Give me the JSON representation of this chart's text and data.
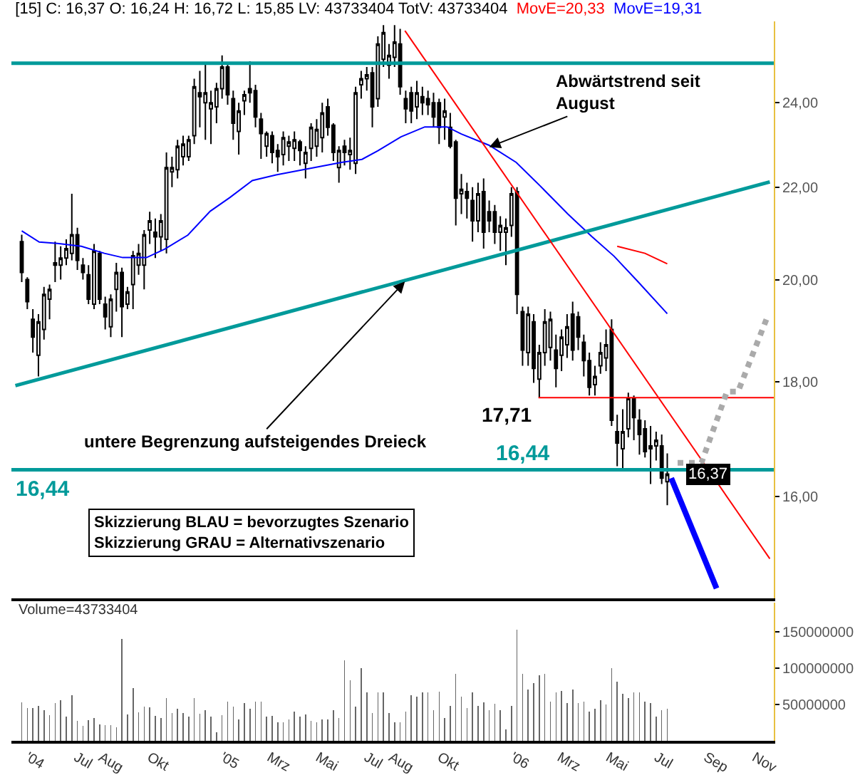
{
  "chart_data": [
    {
      "type": "candlestick",
      "title": "[15] C: 16,37 O: 16,24 H: 16,72 L: 15,85 LV: 43733404 TotV: 43733404",
      "log": true,
      "tick_labels": "y",
      "xlim": [
        "2004-04-10",
        "2006-11-25"
      ],
      "ylim": [
        14.4,
        26.1
      ],
      "yticks": [
        {
          "value": 16,
          "label": "16,00"
        },
        {
          "value": 18,
          "label": "18,00"
        },
        {
          "value": 20,
          "label": "20,00"
        },
        {
          "value": 22,
          "label": "22,00"
        },
        {
          "value": 24,
          "label": "24,00"
        }
      ],
      "x": [
        "2004-04-23",
        "2004-04-30",
        "2004-05-07",
        "2004-05-14",
        "2004-05-21",
        "2004-05-28",
        "2004-06-04",
        "2004-06-11",
        "2004-06-18",
        "2004-06-25",
        "2004-07-02",
        "2004-07-09",
        "2004-07-16",
        "2004-07-23",
        "2004-07-30",
        "2004-08-06",
        "2004-08-13",
        "2004-08-20",
        "2004-08-27",
        "2004-09-03",
        "2004-09-10",
        "2004-09-17",
        "2004-09-24",
        "2004-10-01",
        "2004-10-08",
        "2004-10-15",
        "2004-10-22",
        "2004-10-29",
        "2004-11-05",
        "2004-11-12",
        "2004-11-19",
        "2004-11-26",
        "2004-12-03",
        "2004-12-10",
        "2004-12-17",
        "2004-12-24",
        "2004-12-31",
        "2005-01-07",
        "2005-01-14",
        "2005-01-21",
        "2005-01-28",
        "2005-02-04",
        "2005-02-11",
        "2005-02-18",
        "2005-02-25",
        "2005-03-04",
        "2005-03-11",
        "2005-03-18",
        "2005-03-25",
        "2005-04-01",
        "2005-04-08",
        "2005-04-15",
        "2005-04-22",
        "2005-04-29",
        "2005-05-06",
        "2005-05-13",
        "2005-05-20",
        "2005-05-27",
        "2005-06-03",
        "2005-06-10",
        "2005-06-17",
        "2005-06-24",
        "2005-07-01",
        "2005-07-08",
        "2005-07-15",
        "2005-07-22",
        "2005-07-29",
        "2005-08-05",
        "2005-08-12",
        "2005-08-19",
        "2005-08-26",
        "2005-09-02",
        "2005-09-09",
        "2005-09-16",
        "2005-09-23",
        "2005-09-30",
        "2005-10-07",
        "2005-10-14",
        "2005-10-21",
        "2005-10-28",
        "2005-11-04",
        "2005-11-11",
        "2005-11-18",
        "2005-11-25",
        "2005-12-02",
        "2005-12-09",
        "2005-12-16",
        "2005-12-23",
        "2005-12-30",
        "2006-01-06",
        "2006-01-13",
        "2006-01-20",
        "2006-01-27",
        "2006-02-03",
        "2006-02-10",
        "2006-02-17",
        "2006-02-24",
        "2006-03-03",
        "2006-03-10",
        "2006-03-17",
        "2006-03-24",
        "2006-03-31",
        "2006-04-07",
        "2006-04-14",
        "2006-04-21",
        "2006-04-28",
        "2006-05-05",
        "2006-05-12",
        "2006-05-19",
        "2006-05-26",
        "2006-06-02",
        "2006-06-09",
        "2006-06-16",
        "2006-06-23",
        "2006-06-30",
        "2006-07-07",
        "2006-07-14"
      ],
      "ohlc": [
        [
          20.8,
          20.95,
          19.95,
          20.15
        ],
        [
          20.0,
          20.05,
          19.4,
          19.55
        ],
        [
          19.2,
          19.4,
          18.55,
          18.85
        ],
        [
          18.5,
          19.3,
          18.1,
          19.15
        ],
        [
          19.0,
          19.85,
          18.8,
          19.7
        ],
        [
          19.6,
          19.9,
          19.2,
          19.8
        ],
        [
          20.3,
          20.8,
          19.95,
          20.35
        ],
        [
          20.3,
          20.7,
          20.0,
          20.45
        ],
        [
          20.45,
          20.85,
          20.3,
          20.65
        ],
        [
          20.55,
          21.85,
          20.4,
          20.95
        ],
        [
          20.95,
          21.1,
          20.2,
          20.4
        ],
        [
          20.3,
          20.45,
          20.0,
          20.15
        ],
        [
          20.1,
          20.3,
          19.5,
          19.6
        ],
        [
          19.5,
          20.75,
          19.4,
          20.6
        ],
        [
          20.55,
          20.6,
          19.5,
          19.6
        ],
        [
          19.5,
          19.65,
          19.0,
          19.25
        ],
        [
          19.05,
          19.7,
          18.85,
          19.6
        ],
        [
          19.8,
          20.35,
          19.35,
          20.15
        ],
        [
          20.15,
          20.25,
          18.85,
          19.45
        ],
        [
          19.5,
          19.85,
          19.4,
          19.75
        ],
        [
          19.9,
          20.6,
          19.4,
          20.5
        ],
        [
          20.3,
          20.75,
          20.1,
          20.55
        ],
        [
          20.3,
          21.05,
          19.8,
          20.95
        ],
        [
          21.05,
          21.45,
          20.75,
          21.25
        ],
        [
          21.0,
          21.3,
          20.45,
          20.9
        ],
        [
          20.9,
          21.4,
          20.6,
          21.25
        ],
        [
          20.85,
          22.8,
          20.55,
          22.45
        ],
        [
          22.35,
          22.7,
          22.0,
          22.45
        ],
        [
          22.4,
          23.1,
          22.2,
          22.95
        ],
        [
          22.7,
          23.2,
          22.5,
          23.0
        ],
        [
          22.7,
          23.2,
          22.6,
          23.1
        ],
        [
          23.2,
          24.6,
          23.0,
          24.4
        ],
        [
          24.25,
          24.8,
          23.4,
          24.15
        ],
        [
          24.0,
          25.0,
          23.1,
          24.25
        ],
        [
          23.85,
          24.3,
          23.0,
          24.0
        ],
        [
          23.9,
          24.5,
          23.5,
          24.35
        ],
        [
          24.35,
          25.2,
          24.1,
          24.9
        ],
        [
          24.9,
          25.0,
          23.95,
          24.2
        ],
        [
          24.1,
          24.3,
          23.1,
          23.5
        ],
        [
          23.3,
          24.0,
          22.75,
          23.8
        ],
        [
          24.05,
          24.3,
          23.7,
          24.2
        ],
        [
          24.35,
          25.05,
          24.0,
          24.25
        ],
        [
          24.3,
          24.45,
          23.4,
          23.65
        ],
        [
          23.6,
          23.75,
          22.65,
          23.25
        ],
        [
          22.95,
          23.3,
          22.7,
          23.25
        ],
        [
          23.2,
          23.3,
          22.55,
          22.8
        ],
        [
          22.85,
          23.0,
          22.35,
          22.7
        ],
        [
          22.75,
          23.3,
          22.5,
          23.15
        ],
        [
          22.95,
          23.2,
          22.6,
          23.05
        ],
        [
          22.9,
          23.3,
          22.6,
          23.1
        ],
        [
          23.05,
          23.1,
          22.5,
          22.85
        ],
        [
          22.55,
          22.95,
          22.2,
          22.8
        ],
        [
          22.9,
          23.5,
          22.6,
          23.4
        ],
        [
          22.95,
          23.6,
          22.7,
          23.35
        ],
        [
          23.15,
          24.0,
          22.8,
          23.75
        ],
        [
          23.9,
          24.1,
          23.2,
          23.4
        ],
        [
          23.45,
          23.5,
          22.6,
          22.8
        ],
        [
          22.45,
          22.95,
          22.1,
          22.85
        ],
        [
          22.95,
          23.1,
          22.5,
          22.8
        ],
        [
          22.75,
          23.15,
          22.4,
          22.85
        ],
        [
          22.55,
          24.4,
          22.3,
          24.25
        ],
        [
          24.45,
          24.8,
          24.1,
          24.6
        ],
        [
          24.6,
          24.9,
          24.3,
          24.7
        ],
        [
          24.75,
          24.9,
          23.4,
          23.9
        ],
        [
          24.1,
          25.7,
          23.9,
          25.5
        ],
        [
          25.1,
          26.0,
          24.9,
          25.8
        ],
        [
          24.95,
          25.5,
          24.6,
          25.2
        ],
        [
          25.15,
          26.0,
          24.9,
          25.55
        ],
        [
          25.5,
          25.9,
          24.2,
          24.4
        ],
        [
          24.1,
          24.3,
          23.5,
          23.85
        ],
        [
          24.25,
          24.4,
          23.5,
          23.8
        ],
        [
          23.9,
          24.55,
          23.6,
          24.25
        ],
        [
          24.15,
          24.4,
          23.7,
          24.0
        ],
        [
          24.1,
          24.3,
          23.7,
          23.95
        ],
        [
          24.0,
          24.25,
          23.4,
          23.65
        ],
        [
          24.0,
          24.1,
          23.0,
          23.4
        ],
        [
          23.65,
          24.1,
          23.1,
          23.8
        ],
        [
          23.4,
          23.75,
          22.9,
          22.95
        ],
        [
          23.05,
          23.1,
          21.15,
          21.75
        ],
        [
          21.85,
          22.3,
          21.4,
          21.95
        ],
        [
          21.9,
          22.1,
          21.3,
          21.75
        ],
        [
          21.7,
          22.0,
          20.8,
          21.25
        ],
        [
          21.25,
          22.1,
          21.0,
          21.85
        ],
        [
          21.9,
          22.2,
          20.65,
          21.0
        ],
        [
          21.45,
          21.7,
          21.0,
          21.25
        ],
        [
          21.45,
          21.6,
          20.75,
          21.0
        ],
        [
          21.0,
          21.35,
          20.6,
          21.15
        ],
        [
          21.0,
          21.3,
          20.3,
          21.1
        ],
        [
          21.15,
          22.0,
          20.9,
          21.85
        ],
        [
          21.9,
          22.0,
          19.3,
          19.7
        ],
        [
          19.35,
          19.45,
          18.3,
          18.6
        ],
        [
          18.55,
          19.45,
          18.3,
          19.3
        ],
        [
          19.15,
          19.3,
          17.98,
          18.25
        ],
        [
          18.05,
          18.7,
          17.71,
          18.55
        ],
        [
          18.55,
          19.4,
          18.3,
          19.15
        ],
        [
          18.65,
          19.35,
          18.4,
          19.2
        ],
        [
          18.6,
          18.9,
          17.9,
          18.25
        ],
        [
          18.5,
          19.0,
          18.2,
          18.85
        ],
        [
          18.7,
          19.3,
          18.45,
          19.05
        ],
        [
          19.3,
          19.55,
          18.4,
          18.6
        ],
        [
          19.25,
          19.35,
          18.6,
          18.85
        ],
        [
          18.75,
          18.9,
          18.1,
          18.4
        ],
        [
          18.4,
          18.55,
          17.75,
          17.9
        ],
        [
          17.95,
          18.3,
          17.75,
          18.1
        ],
        [
          18.3,
          18.75,
          18.15,
          18.55
        ],
        [
          18.45,
          19.0,
          18.2,
          18.7
        ],
        [
          19.0,
          19.2,
          17.2,
          17.3
        ],
        [
          17.1,
          17.4,
          16.5,
          16.9
        ],
        [
          16.8,
          17.5,
          16.45,
          17.1
        ],
        [
          17.15,
          17.8,
          17.0,
          17.7
        ],
        [
          17.7,
          17.75,
          16.95,
          17.35
        ],
        [
          17.3,
          17.5,
          16.7,
          17.05
        ],
        [
          17.15,
          17.3,
          16.65,
          16.75
        ],
        [
          16.8,
          17.2,
          16.2,
          16.85
        ],
        [
          16.85,
          17.1,
          16.6,
          16.95
        ],
        [
          16.85,
          17.05,
          16.2,
          16.3
        ],
        [
          16.24,
          16.72,
          15.85,
          16.37
        ]
      ],
      "series": [
        {
          "name": "MovE=20,33",
          "color": "#ff0000",
          "type": "line",
          "x": [
            "2006-05-12",
            "2006-06-16",
            "2006-07-14"
          ],
          "values": [
            20.7,
            20.55,
            20.33
          ]
        },
        {
          "name": "MovE=19,31",
          "color": "#0000ff",
          "type": "line",
          "x": [
            "2004-04-23",
            "2004-05-15",
            "2004-06-07",
            "2004-07-07",
            "2004-08-05",
            "2004-08-28",
            "2004-09-27",
            "2004-10-20",
            "2004-11-18",
            "2004-12-16",
            "2005-01-10",
            "2005-02-07",
            "2005-03-09",
            "2005-05-30",
            "2005-06-25",
            "2005-07-15",
            "2005-08-13",
            "2005-09-12",
            "2005-10-10",
            "2005-10-28",
            "2005-12-02",
            "2006-01-05",
            "2006-02-04",
            "2006-03-11",
            "2006-04-10",
            "2006-05-08",
            "2006-06-07",
            "2006-07-14"
          ],
          "values": [
            21.03,
            20.79,
            20.76,
            20.7,
            20.55,
            20.46,
            20.46,
            20.64,
            20.94,
            21.46,
            21.77,
            22.15,
            22.28,
            22.57,
            22.64,
            22.84,
            23.17,
            23.41,
            23.41,
            23.24,
            22.97,
            22.57,
            22.03,
            21.4,
            20.91,
            20.49,
            19.96,
            19.31
          ]
        },
        {
          "color": "#009a9a",
          "type": "line",
          "x": [
            "2004-04-15",
            "2006-11-20"
          ],
          "values": [
            17.93,
            22.12
          ]
        },
        {
          "color": "#ff0000",
          "type": "line",
          "x": [
            "2005-08-18",
            "2006-11-20"
          ],
          "values": [
            25.85,
            15.0
          ]
        },
        {
          "color": "#ff0000",
          "type": "line",
          "x": [
            "2006-02-02",
            "2006-11-25"
          ],
          "values": [
            17.71,
            17.71
          ]
        },
        {
          "color": "#0000ff",
          "type": "line",
          "x": [
            "2006-07-19",
            "2006-09-14"
          ],
          "values": [
            16.3,
            14.55
          ]
        },
        {
          "color": "#aaaaaa",
          "type": "line",
          "line_style": "dotted",
          "x": [
            "2006-07-27",
            "2006-08-26",
            "2006-09-22",
            "2006-09-27",
            "2006-10-11",
            "2006-11-17"
          ],
          "values": [
            16.56,
            16.56,
            17.61,
            17.82,
            17.82,
            19.25
          ]
        }
      ],
      "ref_lines": [
        {
          "axis": "y",
          "value": 25,
          "color": "#009a9a"
        },
        {
          "axis": "y",
          "value": 16.44,
          "label": "16,44",
          "color": "#009a9a"
        }
      ],
      "annotations": [
        {
          "text": "Abwärtstrend seit\nAugust",
          "x": "2005-12-02",
          "y": 22.93
        },
        {
          "text": "untere Begrenzung aufsteigendes Dreieck",
          "x": "2005-08-18",
          "y": 19.96
        },
        "Skizzierung BLAU = bevorzugtes Szenario\nSkizzierung GRAU = Alternativszenario",
        {
          "text": "17,71",
          "x": "2006-02-02",
          "y": 17.71
        },
        {
          "text": "16,44",
          "x": "2004-04-12",
          "y": 16.44
        },
        {
          "text": "16,37",
          "y": 16.37
        }
      ]
    },
    {
      "type": "bar",
      "title": "Volume=43733404",
      "color": "#666666",
      "xlim": [
        "2004-04-10",
        "2006-11-25"
      ],
      "ylim": [
        0,
        190000000
      ],
      "yticks": [
        50000000,
        100000000,
        150000000
      ],
      "xticks": [
        {
          "value": "2004-05-01",
          "label": "'04"
        },
        {
          "value": "2004-07-01",
          "label": "Jul"
        },
        {
          "value": "2004-08-01",
          "label": "Aug"
        },
        {
          "value": "2004-10-01",
          "label": "Okt"
        },
        {
          "value": "2005-01-01",
          "label": "'05"
        },
        {
          "value": "2005-03-01",
          "label": "Mrz"
        },
        {
          "value": "2005-05-01",
          "label": "Mai"
        },
        {
          "value": "2005-07-01",
          "label": "Jul"
        },
        {
          "value": "2005-08-01",
          "label": "Aug"
        },
        {
          "value": "2005-10-01",
          "label": "Okt"
        },
        {
          "value": "2006-01-01",
          "label": "'06"
        },
        {
          "value": "2006-03-01",
          "label": "Mrz"
        },
        {
          "value": "2006-05-01",
          "label": "Mai"
        },
        {
          "value": "2006-07-01",
          "label": "Jul"
        },
        {
          "value": "2006-09-01",
          "label": "Sep"
        },
        {
          "value": "2006-11-01",
          "label": "Nov"
        }
      ],
      "x": [
        "2004-04-23",
        "2004-04-30",
        "2004-05-07",
        "2004-05-14",
        "2004-05-21",
        "2004-05-28",
        "2004-06-04",
        "2004-06-11",
        "2004-06-18",
        "2004-06-25",
        "2004-07-02",
        "2004-07-09",
        "2004-07-16",
        "2004-07-23",
        "2004-07-30",
        "2004-08-06",
        "2004-08-13",
        "2004-08-20",
        "2004-08-27",
        "2004-09-03",
        "2004-09-10",
        "2004-09-17",
        "2004-09-24",
        "2004-10-01",
        "2004-10-08",
        "2004-10-15",
        "2004-10-22",
        "2004-10-29",
        "2004-11-05",
        "2004-11-12",
        "2004-11-19",
        "2004-11-26",
        "2004-12-03",
        "2004-12-10",
        "2004-12-17",
        "2004-12-24",
        "2004-12-31",
        "2005-01-07",
        "2005-01-14",
        "2005-01-21",
        "2005-01-28",
        "2005-02-04",
        "2005-02-11",
        "2005-02-18",
        "2005-02-25",
        "2005-03-04",
        "2005-03-11",
        "2005-03-18",
        "2005-03-25",
        "2005-04-01",
        "2005-04-08",
        "2005-04-15",
        "2005-04-22",
        "2005-04-29",
        "2005-05-06",
        "2005-05-13",
        "2005-05-20",
        "2005-05-27",
        "2005-06-03",
        "2005-06-10",
        "2005-06-17",
        "2005-06-24",
        "2005-07-01",
        "2005-07-08",
        "2005-07-15",
        "2005-07-22",
        "2005-07-29",
        "2005-08-05",
        "2005-08-12",
        "2005-08-19",
        "2005-08-26",
        "2005-09-02",
        "2005-09-09",
        "2005-09-16",
        "2005-09-23",
        "2005-09-30",
        "2005-10-07",
        "2005-10-14",
        "2005-10-21",
        "2005-10-28",
        "2005-11-04",
        "2005-11-11",
        "2005-11-18",
        "2005-11-25",
        "2005-12-02",
        "2005-12-09",
        "2005-12-16",
        "2005-12-23",
        "2005-12-30",
        "2006-01-06",
        "2006-01-13",
        "2006-01-20",
        "2006-01-27",
        "2006-02-03",
        "2006-02-10",
        "2006-02-17",
        "2006-02-24",
        "2006-03-03",
        "2006-03-10",
        "2006-03-17",
        "2006-03-24",
        "2006-03-31",
        "2006-04-07",
        "2006-04-14",
        "2006-04-21",
        "2006-04-28",
        "2006-05-05",
        "2006-05-12",
        "2006-05-19",
        "2006-05-26",
        "2006-06-02",
        "2006-06-09",
        "2006-06-16",
        "2006-06-23",
        "2006-06-30",
        "2006-07-07",
        "2006-07-14"
      ],
      "values": [
        53000000,
        45000000,
        45000000,
        48000000,
        42000000,
        35000000,
        52000000,
        56000000,
        33000000,
        63000000,
        27000000,
        21000000,
        28000000,
        31000000,
        23000000,
        22000000,
        22000000,
        19000000,
        140000000,
        36000000,
        73000000,
        39000000,
        47000000,
        46000000,
        34000000,
        31000000,
        59000000,
        38000000,
        44000000,
        38000000,
        33000000,
        59000000,
        37000000,
        42000000,
        33000000,
        12000000,
        35000000,
        54000000,
        47000000,
        29000000,
        52000000,
        44000000,
        54000000,
        54000000,
        33000000,
        34000000,
        25000000,
        25000000,
        29000000,
        40000000,
        33000000,
        36000000,
        27000000,
        25000000,
        29000000,
        29000000,
        42000000,
        31000000,
        111000000,
        83000000,
        47000000,
        100000000,
        67000000,
        38000000,
        67000000,
        67000000,
        38000000,
        25000000,
        25000000,
        40000000,
        63000000,
        61000000,
        67000000,
        67000000,
        42000000,
        68000000,
        31000000,
        48000000,
        92000000,
        61000000,
        45000000,
        67000000,
        48000000,
        53000000,
        42000000,
        51000000,
        42000000,
        16000000,
        48000000,
        153000000,
        92000000,
        71000000,
        79000000,
        90000000,
        92000000,
        54000000,
        67000000,
        69000000,
        52000000,
        71000000,
        52000000,
        54000000,
        40000000,
        44000000,
        56000000,
        50000000,
        100000000,
        81000000,
        65000000,
        59000000,
        67000000,
        67000000,
        54000000,
        52000000,
        33000000,
        42000000,
        44000000
      ]
    }
  ]
}
